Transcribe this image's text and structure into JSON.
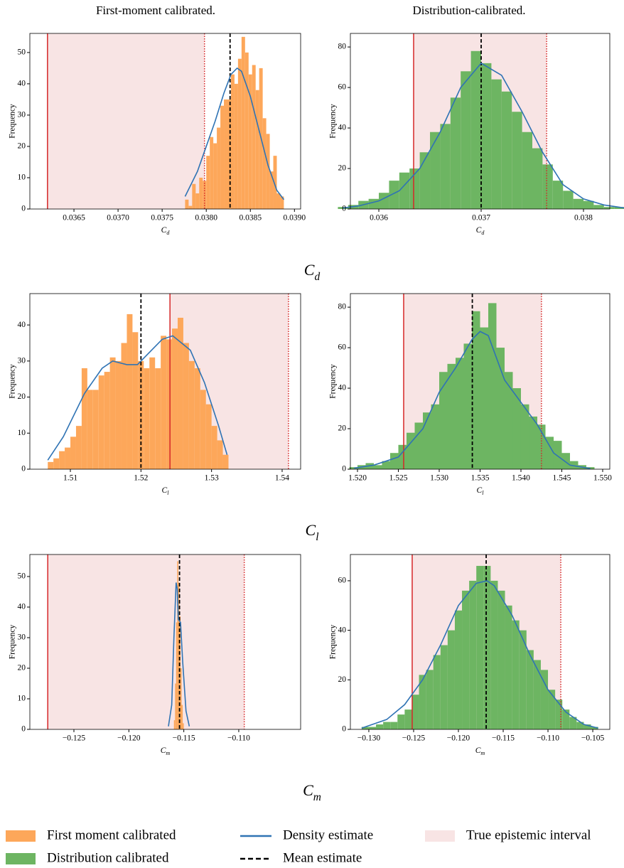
{
  "column_titles": [
    "First-moment calibrated.",
    "Distribution-calibrated."
  ],
  "row_labels": [
    [
      "C",
      "d"
    ],
    [
      "C",
      "l"
    ],
    [
      "C",
      "m"
    ]
  ],
  "legend": [
    {
      "label": "First moment calibrated",
      "color": "#fda75a",
      "style": "patch"
    },
    {
      "label": "Distribution calibrated",
      "color": "#6db562",
      "style": "patch"
    },
    {
      "label": "Density estimate",
      "color": "#2f73b4",
      "style": "line"
    },
    {
      "label": "Mean estimate",
      "color": "#000000",
      "style": "dashed"
    },
    {
      "label": "True epistemic interval",
      "color": "#f8e4e4",
      "style": "patch"
    }
  ],
  "chart_data": [
    {
      "type": "histogram",
      "xlabel": [
        "C",
        "d"
      ],
      "ylabel": "Frequency",
      "color": "#fda75a",
      "bins": [
        0.03776,
        0.0378,
        0.03784,
        0.03788,
        0.03792,
        0.03796,
        0.038,
        0.03804,
        0.03808,
        0.03812,
        0.03816,
        0.0382,
        0.03824,
        0.03828,
        0.03832,
        0.03836,
        0.0384,
        0.03844,
        0.03848,
        0.03852,
        0.03856,
        0.0386,
        0.03864,
        0.03868,
        0.03872,
        0.03876,
        0.0388,
        0.03884,
        0.03888
      ],
      "counts": [
        3,
        1,
        8,
        5,
        10,
        9,
        17,
        23,
        21,
        26,
        33,
        35,
        35,
        43,
        40,
        48,
        55,
        50,
        43,
        46,
        38,
        45,
        29,
        24,
        12,
        17,
        5,
        4
      ],
      "density": {
        "color": "#2f73b4",
        "x": [
          0.03776,
          0.0379,
          0.038,
          0.0381,
          0.0382,
          0.03828,
          0.03835,
          0.0384,
          0.0385,
          0.0386,
          0.0387,
          0.0388,
          0.03888
        ],
        "y": [
          4,
          12,
          20,
          28,
          37,
          43,
          45,
          44,
          36,
          25,
          14,
          6,
          3
        ]
      },
      "mean": 0.03827,
      "interval": [
        0.0362,
        0.03798
      ],
      "interval_color": "#d62728",
      "shade_color": "#f8e4e4",
      "xlim": [
        0.036,
        0.03907
      ],
      "ylim": [
        0,
        56.1
      ],
      "xticks": [
        0.0365,
        {
          "value": 0.037,
          "label": "0.0370"
        },
        0.0375,
        {
          "value": 0.038,
          "label": "0.0380"
        },
        0.0385,
        {
          "value": 0.039,
          "label": "0.0390"
        }
      ],
      "yticks": [
        0,
        10,
        20,
        30,
        40,
        50
      ]
    },
    {
      "type": "histogram",
      "xlabel": [
        "C",
        "d"
      ],
      "ylabel": "Frequency",
      "color": "#6db562",
      "bins": [
        0.0356,
        0.0357,
        0.0358,
        0.0359,
        0.036,
        0.0361,
        0.0362,
        0.0363,
        0.0364,
        0.0365,
        0.0366,
        0.0367,
        0.0368,
        0.0369,
        0.037,
        0.0371,
        0.0372,
        0.0373,
        0.0374,
        0.0375,
        0.0376,
        0.0377,
        0.0378,
        0.0379,
        0.038,
        0.0381,
        0.0382,
        0.0383,
        0.0384
      ],
      "counts": [
        1,
        2,
        4,
        5,
        8,
        14,
        18,
        20,
        28,
        38,
        42,
        55,
        68,
        78,
        72,
        64,
        58,
        48,
        38,
        30,
        22,
        14,
        9,
        5,
        4,
        2,
        1,
        1
      ],
      "density": {
        "color": "#2f73b4",
        "x": [
          0.03565,
          0.0358,
          0.036,
          0.0362,
          0.0364,
          0.0366,
          0.0368,
          0.037,
          0.0372,
          0.0374,
          0.0376,
          0.0378,
          0.038,
          0.0382,
          0.0384
        ],
        "y": [
          0.5,
          1.5,
          4,
          9,
          20,
          38,
          60,
          72,
          66,
          48,
          28,
          12,
          5,
          2,
          0.5
        ]
      },
      "mean": 0.037,
      "interval": [
        0.03634,
        0.03764
      ],
      "interval_color": "#d62728",
      "shade_color": "#f8e4e4",
      "xlim": [
        0.035722,
        0.038257
      ],
      "ylim": [
        0,
        86.7
      ],
      "xticks": [
        0.036,
        0.037,
        0.038
      ],
      "yticks": [
        0,
        20,
        40,
        60,
        80
      ]
    },
    {
      "type": "histogram",
      "xlabel": [
        "C",
        "l"
      ],
      "ylabel": "Frequency",
      "color": "#fda75a",
      "bins": [
        1.5068,
        1.5076,
        1.5084,
        1.5092,
        1.51,
        1.5108,
        1.5116,
        1.5124,
        1.5132,
        1.514,
        1.5148,
        1.5156,
        1.5164,
        1.5172,
        1.518,
        1.5188,
        1.5196,
        1.5204,
        1.5212,
        1.522,
        1.5228,
        1.5236,
        1.5244,
        1.5252,
        1.526,
        1.5268,
        1.5276,
        1.5284,
        1.5292,
        1.53,
        1.5308,
        1.5316,
        1.5324
      ],
      "counts": [
        2,
        3,
        5,
        6,
        9,
        12,
        28,
        22,
        22,
        26,
        27,
        31,
        30,
        35,
        43,
        38,
        30,
        28,
        31,
        28,
        37,
        36,
        39,
        42,
        35,
        30,
        28,
        22,
        18,
        12,
        8,
        4
      ],
      "density": {
        "color": "#2f73b4",
        "x": [
          1.5068,
          1.509,
          1.512,
          1.5145,
          1.516,
          1.518,
          1.5195,
          1.521,
          1.523,
          1.5245,
          1.527,
          1.529,
          1.531,
          1.5322
        ],
        "y": [
          2.5,
          9,
          21,
          28,
          30,
          29,
          29,
          32,
          36,
          37,
          33,
          24,
          12,
          4
        ]
      },
      "mean": 1.52,
      "interval": [
        1.52411,
        1.5409
      ],
      "interval_color": "#d62728",
      "shade_color": "#f8e4e4",
      "xlim": [
        1.50426,
        1.54262
      ],
      "ylim": [
        0,
        48.7
      ],
      "xticks": [
        1.51,
        1.52,
        1.53,
        1.54
      ],
      "yticks": [
        0,
        10,
        20,
        30,
        40
      ]
    },
    {
      "type": "histogram",
      "xlabel": [
        "C",
        "l"
      ],
      "ylabel": "Frequency",
      "color": "#6db562",
      "bins": [
        1.519,
        1.52,
        1.521,
        1.522,
        1.523,
        1.524,
        1.525,
        1.526,
        1.527,
        1.528,
        1.529,
        1.53,
        1.531,
        1.532,
        1.533,
        1.534,
        1.535,
        1.536,
        1.537,
        1.538,
        1.539,
        1.54,
        1.541,
        1.542,
        1.543,
        1.544,
        1.545,
        1.546,
        1.547,
        1.548,
        1.549
      ],
      "counts": [
        1,
        2,
        3,
        2,
        4,
        8,
        12,
        18,
        23,
        28,
        32,
        48,
        52,
        55,
        62,
        78,
        70,
        82,
        60,
        48,
        40,
        32,
        26,
        22,
        16,
        14,
        8,
        4,
        2,
        1
      ],
      "density": {
        "color": "#2f73b4",
        "x": [
          1.5196,
          1.522,
          1.525,
          1.528,
          1.53,
          1.532,
          1.534,
          1.535,
          1.536,
          1.538,
          1.54,
          1.542,
          1.544,
          1.546,
          1.5485
        ],
        "y": [
          0.5,
          2,
          6,
          20,
          38,
          50,
          64,
          68,
          66,
          44,
          33,
          22,
          8,
          2,
          0.3
        ]
      },
      "mean": 1.53405,
      "interval": [
        1.52565,
        1.54251
      ],
      "interval_color": "#d62728",
      "shade_color": "#f8e4e4",
      "xlim": [
        1.51913,
        1.55087
      ],
      "ylim": [
        0,
        86.7
      ],
      "xticks": [
        {
          "value": 1.52,
          "label": "1.520"
        },
        1.525,
        {
          "value": 1.53,
          "label": "1.530"
        },
        1.535,
        {
          "value": 1.54,
          "label": "1.540"
        },
        1.545,
        {
          "value": 1.55,
          "label": "1.550"
        }
      ],
      "yticks": [
        0,
        20,
        40,
        60,
        80
      ]
    },
    {
      "type": "histogram",
      "xlabel": [
        "C",
        "m"
      ],
      "ylabel": "Frequency",
      "color": "#fda75a",
      "bins": [
        -0.1159,
        -0.1158,
        -0.1157,
        -0.1156,
        -0.1155,
        -0.1154,
        -0.1153,
        -0.1152,
        -0.1151,
        -0.115
      ],
      "counts": [
        3,
        15,
        35,
        55,
        48,
        37,
        20,
        8,
        2
      ],
      "density": {
        "color": "#2f73b4",
        "x": [
          -0.1164,
          -0.1161,
          -0.1159,
          -0.1157,
          -0.1156,
          -0.1155,
          -0.1153,
          -0.1151,
          -0.1148,
          -0.1145
        ],
        "y": [
          1,
          8,
          30,
          48,
          46,
          36,
          35,
          22,
          6,
          1
        ]
      },
      "mean": -0.11539,
      "interval": [
        -0.12738,
        -0.1095
      ],
      "interval_color": "#d62728",
      "shade_color": "#f8e4e4",
      "xlim": [
        -0.12901,
        -0.10437
      ],
      "ylim": [
        0,
        57.2
      ],
      "xticks": [
        {
          "value": -0.125,
          "label": "−0.125"
        },
        {
          "value": -0.12,
          "label": "−0.120"
        },
        {
          "value": -0.115,
          "label": "−0.115"
        },
        {
          "value": -0.11,
          "label": "−0.110"
        }
      ],
      "yticks": [
        0,
        10,
        20,
        30,
        40,
        50
      ]
    },
    {
      "type": "histogram",
      "xlabel": [
        "C",
        "m"
      ],
      "ylabel": "Frequency",
      "color": "#6db562",
      "bins": [
        -0.1308,
        -0.13,
        -0.1292,
        -0.1284,
        -0.1276,
        -0.1268,
        -0.126,
        -0.1252,
        -0.1244,
        -0.1236,
        -0.1228,
        -0.122,
        -0.1212,
        -0.1204,
        -0.1196,
        -0.1188,
        -0.118,
        -0.1172,
        -0.1164,
        -0.1156,
        -0.1148,
        -0.114,
        -0.1132,
        -0.1124,
        -0.1116,
        -0.1108,
        -0.11,
        -0.1092,
        -0.1084,
        -0.1076,
        -0.1068,
        -0.106,
        -0.1052,
        -0.1044
      ],
      "counts": [
        1,
        1,
        2,
        3,
        3,
        6,
        8,
        14,
        22,
        24,
        30,
        34,
        40,
        48,
        56,
        60,
        66,
        66,
        60,
        56,
        50,
        44,
        40,
        32,
        28,
        24,
        16,
        12,
        8,
        5,
        3,
        2,
        1
      ],
      "density": {
        "color": "#2f73b4",
        "x": [
          -0.1308,
          -0.128,
          -0.126,
          -0.124,
          -0.122,
          -0.12,
          -0.118,
          -0.1168,
          -0.116,
          -0.114,
          -0.112,
          -0.11,
          -0.108,
          -0.106,
          -0.1044
        ],
        "y": [
          0.5,
          4,
          10,
          20,
          34,
          50,
          59,
          60,
          58,
          46,
          30,
          16,
          7,
          2,
          0.5
        ]
      },
      "mean": -0.1169,
      "interval": [
        -0.12516,
        -0.10857
      ],
      "interval_color": "#d62728",
      "shade_color": "#f8e4e4",
      "xlim": [
        -0.13206,
        -0.1031
      ],
      "ylim": [
        0,
        70.6
      ],
      "xticks": [
        {
          "value": -0.13,
          "label": "−0.130"
        },
        {
          "value": -0.125,
          "label": "−0.125"
        },
        {
          "value": -0.12,
          "label": "−0.120"
        },
        {
          "value": -0.115,
          "label": "−0.115"
        },
        {
          "value": -0.11,
          "label": "−0.110"
        },
        {
          "value": -0.105,
          "label": "−0.105"
        }
      ],
      "yticks": [
        0,
        20,
        40,
        60
      ]
    }
  ]
}
